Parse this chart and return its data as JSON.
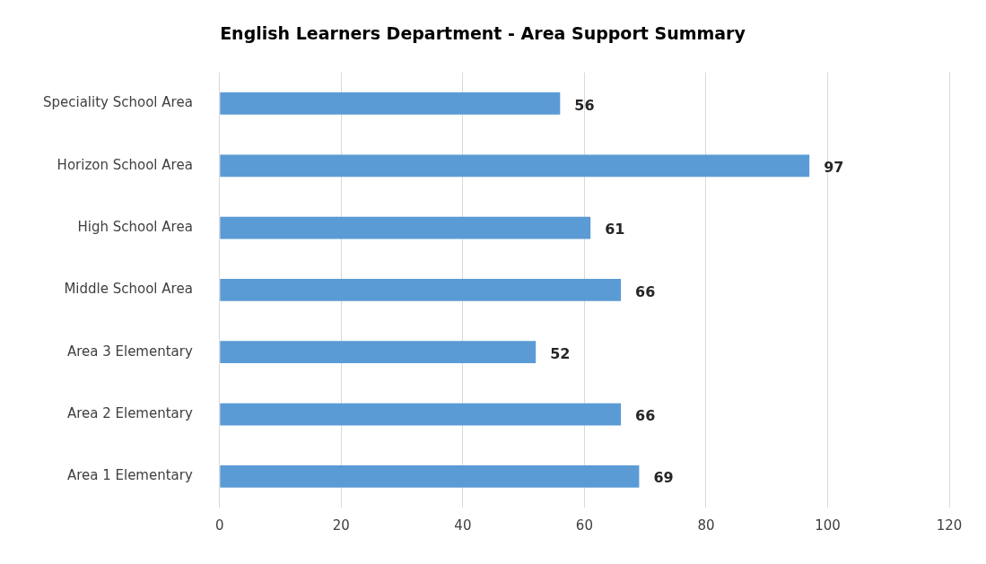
{
  "chart_data": {
    "type": "bar",
    "orientation": "horizontal",
    "title": "English Learners Department - Area Support Summary",
    "categories": [
      "Speciality School Area",
      "Horizon School Area",
      "High School Area",
      "Middle School Area",
      "Area 3 Elementary",
      "Area 2 Elementary",
      "Area 1 Elementary"
    ],
    "values": [
      56,
      97,
      61,
      66,
      52,
      66,
      69
    ],
    "color": "#5b9bd5",
    "xlim": [
      0,
      120
    ],
    "xticks": [
      0,
      20,
      40,
      60,
      80,
      100,
      120
    ],
    "grid": "x",
    "data_labels": true,
    "legend": false
  }
}
